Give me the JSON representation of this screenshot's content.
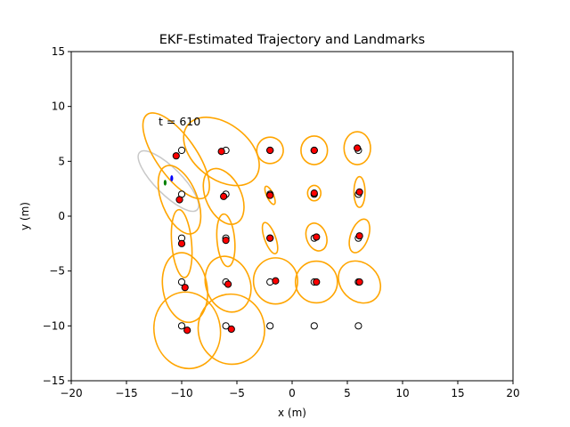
{
  "chart_data": {
    "type": "scatter",
    "title": "EKF-Estimated Trajectory and Landmarks",
    "xlabel": "x (m)",
    "ylabel": "y (m)",
    "xlim": [
      -20,
      20
    ],
    "ylim": [
      -15,
      15
    ],
    "xticks": [
      -20,
      -15,
      -10,
      -5,
      0,
      5,
      10,
      15,
      20
    ],
    "yticks": [
      -15,
      -10,
      -5,
      0,
      5,
      10,
      15
    ],
    "xtick_labels": [
      "−20",
      "−15",
      "−10",
      "−5",
      "0",
      "5",
      "10",
      "15",
      "20"
    ],
    "ytick_labels": [
      "−15",
      "−10",
      "−5",
      "0",
      "5",
      "10",
      "15"
    ],
    "annotation": "t = 610",
    "grid": false,
    "colors": {
      "true_landmark_face": "#ffffff",
      "true_landmark_edge": "#000000",
      "estimated_landmark": "#ff0000",
      "landmark_covariance": "#ffa500",
      "robot_covariance": "#c8c8c8",
      "robot_heading": "#0000ff",
      "robot_marker": "#008000"
    },
    "true_landmarks": [
      [
        -10,
        6
      ],
      [
        -6,
        6
      ],
      [
        -2,
        6
      ],
      [
        2,
        6
      ],
      [
        6,
        6
      ],
      [
        -10,
        2
      ],
      [
        -6,
        2
      ],
      [
        -2,
        2
      ],
      [
        2,
        2
      ],
      [
        6,
        2
      ],
      [
        -10,
        -2
      ],
      [
        -6,
        -2
      ],
      [
        -2,
        -2
      ],
      [
        2,
        -2
      ],
      [
        6,
        -2
      ],
      [
        -10,
        -6
      ],
      [
        -6,
        -6
      ],
      [
        -2,
        -6
      ],
      [
        2,
        -6
      ],
      [
        6,
        -6
      ],
      [
        -10,
        -10
      ],
      [
        -6,
        -10
      ],
      [
        -2,
        -10
      ],
      [
        2,
        -10
      ],
      [
        6,
        -10
      ]
    ],
    "estimated_landmarks": [
      {
        "x": -10.5,
        "y": 5.5,
        "cov_rx": 1.8,
        "cov_ry": 4.6,
        "cov_angle": 35
      },
      {
        "x": -6.4,
        "y": 5.9,
        "cov_rx": 2.5,
        "cov_ry": 3.9,
        "cov_angle": 52
      },
      {
        "x": -2.0,
        "y": 6.0,
        "cov_rx": 1.2,
        "cov_ry": 1.2,
        "cov_angle": 15
      },
      {
        "x": 2.0,
        "y": 6.0,
        "cov_rx": 1.2,
        "cov_ry": 1.3,
        "cov_angle": 0
      },
      {
        "x": 5.9,
        "y": 6.2,
        "cov_rx": 1.2,
        "cov_ry": 1.5,
        "cov_angle": 0
      },
      {
        "x": -10.2,
        "y": 1.5,
        "cov_rx": 1.6,
        "cov_ry": 3.3,
        "cov_angle": 22
      },
      {
        "x": -6.2,
        "y": 1.8,
        "cov_rx": 1.6,
        "cov_ry": 2.7,
        "cov_angle": 25
      },
      {
        "x": -2.0,
        "y": 1.9,
        "cov_rx": 0.3,
        "cov_ry": 0.9,
        "cov_angle": 25
      },
      {
        "x": 2.0,
        "y": 2.1,
        "cov_rx": 0.6,
        "cov_ry": 0.7,
        "cov_angle": 0
      },
      {
        "x": 6.1,
        "y": 2.2,
        "cov_rx": 0.5,
        "cov_ry": 1.4,
        "cov_angle": 0
      },
      {
        "x": -10.0,
        "y": -2.5,
        "cov_rx": 0.9,
        "cov_ry": 3.1,
        "cov_angle": 5
      },
      {
        "x": -6.0,
        "y": -2.2,
        "cov_rx": 0.8,
        "cov_ry": 2.4,
        "cov_angle": 5
      },
      {
        "x": -2.0,
        "y": -2.0,
        "cov_rx": 0.5,
        "cov_ry": 1.5,
        "cov_angle": 20
      },
      {
        "x": 2.2,
        "y": -1.9,
        "cov_rx": 0.9,
        "cov_ry": 1.3,
        "cov_angle": 20
      },
      {
        "x": 6.1,
        "y": -1.8,
        "cov_rx": 0.8,
        "cov_ry": 1.6,
        "cov_angle": -20
      },
      {
        "x": -9.7,
        "y": -6.5,
        "cov_rx": 2.0,
        "cov_ry": 3.2,
        "cov_angle": 10
      },
      {
        "x": -5.8,
        "y": -6.2,
        "cov_rx": 2.0,
        "cov_ry": 2.6,
        "cov_angle": 20
      },
      {
        "x": -1.5,
        "y": -5.9,
        "cov_rx": 2.0,
        "cov_ry": 2.1,
        "cov_angle": 0
      },
      {
        "x": 2.2,
        "y": -6.0,
        "cov_rx": 1.9,
        "cov_ry": 1.9,
        "cov_angle": 0
      },
      {
        "x": 6.1,
        "y": -6.0,
        "cov_rx": 1.7,
        "cov_ry": 2.1,
        "cov_angle": 45
      },
      {
        "x": -9.5,
        "y": -10.4,
        "cov_rx": 3.0,
        "cov_ry": 3.5,
        "cov_angle": 10
      },
      {
        "x": -5.5,
        "y": -10.3,
        "cov_rx": 3.0,
        "cov_ry": 3.2,
        "cov_angle": 10
      }
    ],
    "robot": {
      "x": -11.2,
      "y": 3.2,
      "cov_rx": 1.2,
      "cov_ry": 3.7,
      "cov_angle": 45,
      "heading_x": -10.9,
      "heading_y": 3.45,
      "marker_x": -11.5,
      "marker_y": 3.05
    }
  }
}
